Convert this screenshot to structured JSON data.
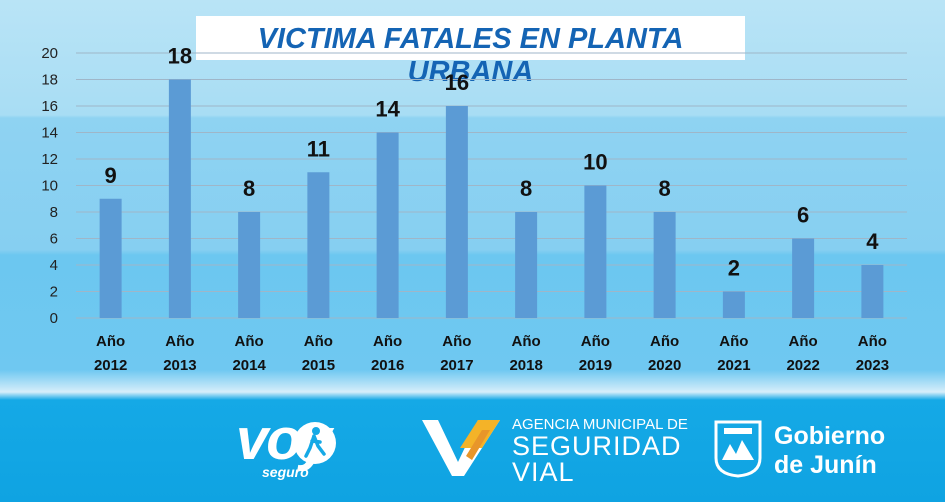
{
  "chart_data": {
    "type": "bar",
    "title": "VICTIMA FATALES EN PLANTA URBANA",
    "categories": [
      [
        "Año",
        "2012"
      ],
      [
        "Año",
        "2013"
      ],
      [
        "Año",
        "2014"
      ],
      [
        "Año",
        "2015"
      ],
      [
        "Año",
        "2016"
      ],
      [
        "Año",
        "2017"
      ],
      [
        "Año",
        "2018"
      ],
      [
        "Año",
        "2019"
      ],
      [
        "Año",
        "2020"
      ],
      [
        "Año",
        "2021"
      ],
      [
        "Año",
        "2022"
      ],
      [
        "Año",
        "2023"
      ]
    ],
    "values": [
      9,
      18,
      8,
      11,
      14,
      16,
      8,
      10,
      8,
      2,
      6,
      4
    ],
    "ylim": [
      0,
      20
    ],
    "yticks": [
      0,
      2,
      4,
      6,
      8,
      10,
      12,
      14,
      16,
      18,
      20
    ],
    "grid": true,
    "legend": "none",
    "xlabel": "",
    "ylabel": "",
    "bar_color": "#5b9bd5"
  },
  "footer": {
    "voy_logo": "voy",
    "voy_sub": "seguro",
    "asv_line1": "AGENCIA MUNICIPAL DE",
    "asv_line2": "SEGURIDAD",
    "asv_line3": "VIAL",
    "junin_line1": "Gobierno",
    "junin_line2": "de Junín"
  }
}
